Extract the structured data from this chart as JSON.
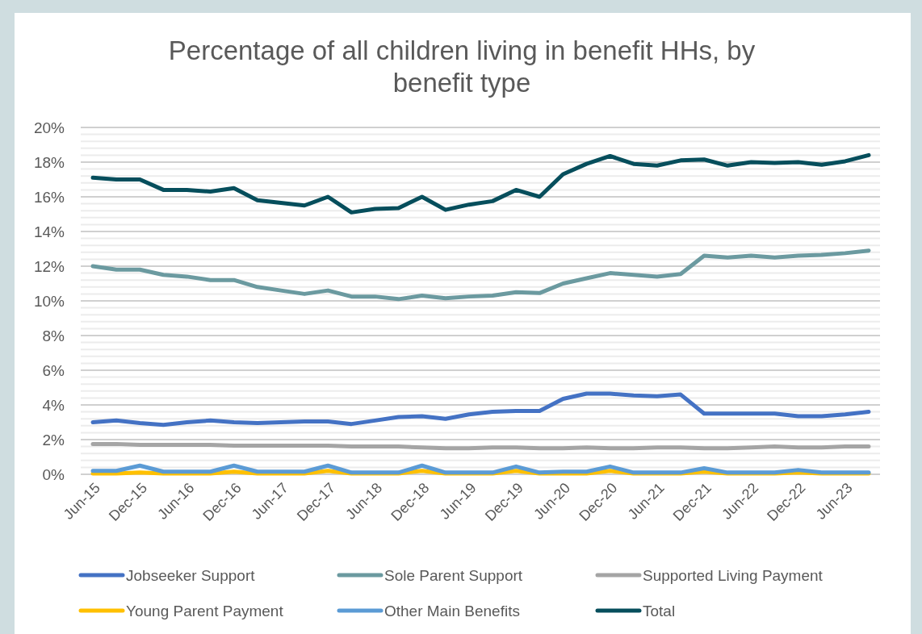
{
  "chart_data": {
    "type": "line",
    "title": "Percentage of all children living  in benefit HHs, by benefit type",
    "categories": [
      "Jun-15",
      null,
      "Dec-15",
      null,
      "Jun-16",
      null,
      "Dec-16",
      null,
      "Jun-17",
      null,
      "Dec-17",
      null,
      "Jun-18",
      null,
      "Dec-18",
      null,
      "Jun-19",
      null,
      "Dec-19",
      null,
      "Jun-20",
      null,
      "Dec-20",
      null,
      "Jun-21",
      null,
      "Dec-21",
      null,
      "Jun-22",
      null,
      "Dec-22",
      null,
      "Jun-23",
      null
    ],
    "series": [
      {
        "name": "Jobseeker Support",
        "color": "#4472c4",
        "values": [
          3.0,
          3.1,
          2.95,
          2.85,
          3.0,
          3.1,
          3.0,
          2.95,
          3.0,
          3.05,
          3.05,
          2.9,
          3.1,
          3.3,
          3.35,
          3.2,
          3.45,
          3.6,
          3.65,
          3.65,
          4.35,
          4.65,
          4.65,
          4.55,
          4.5,
          4.6,
          3.5,
          3.5,
          3.5,
          3.5,
          3.35,
          3.35,
          3.45,
          3.6
        ]
      },
      {
        "name": "Sole Parent Support",
        "color": "#6b9aa0",
        "values": [
          12.0,
          11.8,
          11.8,
          11.5,
          11.4,
          11.2,
          11.2,
          10.8,
          10.6,
          10.4,
          10.6,
          10.25,
          10.25,
          10.1,
          10.3,
          10.15,
          10.25,
          10.3,
          10.5,
          10.45,
          11.0,
          11.3,
          11.6,
          11.5,
          11.4,
          11.55,
          12.6,
          12.5,
          12.6,
          12.5,
          12.6,
          12.65,
          12.75,
          12.9
        ]
      },
      {
        "name": "Supported Living Payment",
        "color": "#a5a5a5",
        "values": [
          1.75,
          1.75,
          1.7,
          1.7,
          1.7,
          1.7,
          1.65,
          1.65,
          1.65,
          1.65,
          1.65,
          1.6,
          1.6,
          1.6,
          1.55,
          1.5,
          1.5,
          1.55,
          1.55,
          1.5,
          1.5,
          1.55,
          1.5,
          1.5,
          1.55,
          1.55,
          1.5,
          1.5,
          1.55,
          1.6,
          1.55,
          1.55,
          1.6,
          1.6
        ]
      },
      {
        "name": "Young Parent Payment",
        "color": "#ffc000",
        "values": [
          0.05,
          0.05,
          0.1,
          0.05,
          0.05,
          0.05,
          0.15,
          0.05,
          0.05,
          0.05,
          0.2,
          0.05,
          0.05,
          0.05,
          0.2,
          0.05,
          0.05,
          0.05,
          0.2,
          0.05,
          0.05,
          0.05,
          0.2,
          0.05,
          0.05,
          0.05,
          0.15,
          0.05,
          0.05,
          0.05,
          0.1,
          0.05,
          0.05,
          0.05
        ]
      },
      {
        "name": "Other Main Benefits",
        "color": "#5b9bd5",
        "values": [
          0.2,
          0.2,
          0.5,
          0.15,
          0.15,
          0.15,
          0.5,
          0.15,
          0.15,
          0.15,
          0.5,
          0.1,
          0.1,
          0.1,
          0.5,
          0.1,
          0.1,
          0.1,
          0.45,
          0.1,
          0.15,
          0.15,
          0.45,
          0.1,
          0.1,
          0.1,
          0.35,
          0.1,
          0.1,
          0.1,
          0.25,
          0.1,
          0.1,
          0.1
        ]
      },
      {
        "name": "Total",
        "color": "#064e5c",
        "values": [
          17.1,
          17.0,
          17.0,
          16.4,
          16.4,
          16.3,
          16.5,
          15.8,
          15.65,
          15.5,
          16.0,
          15.1,
          15.3,
          15.35,
          16.0,
          15.25,
          15.55,
          15.75,
          16.4,
          16.0,
          17.3,
          17.9,
          18.35,
          17.9,
          17.8,
          18.1,
          18.15,
          17.8,
          18.0,
          17.95,
          18.0,
          17.85,
          18.05,
          18.4
        ]
      }
    ],
    "ylim": [
      0,
      20
    ],
    "yticks": [
      {
        "value": 0,
        "label": "0%"
      },
      {
        "value": 0.4,
        "label": null
      },
      {
        "value": 0.8,
        "label": null
      },
      {
        "value": 1.2,
        "label": null
      },
      {
        "value": 1.6,
        "label": null
      },
      {
        "value": 2,
        "label": "2%"
      },
      {
        "value": 2.4,
        "label": null
      },
      {
        "value": 2.8,
        "label": null
      },
      {
        "value": 3.2,
        "label": null
      },
      {
        "value": 3.6,
        "label": null
      },
      {
        "value": 4,
        "label": "4%"
      },
      {
        "value": 4.4,
        "label": null
      },
      {
        "value": 4.8,
        "label": null
      },
      {
        "value": 5.2,
        "label": null
      },
      {
        "value": 5.6,
        "label": null
      },
      {
        "value": 6,
        "label": "6%"
      },
      {
        "value": 6.4,
        "label": null
      },
      {
        "value": 6.8,
        "label": null
      },
      {
        "value": 7.2,
        "label": null
      },
      {
        "value": 7.6,
        "label": null
      },
      {
        "value": 8,
        "label": "8%"
      },
      {
        "value": 8.4,
        "label": null
      },
      {
        "value": 8.8,
        "label": null
      },
      {
        "value": 9.2,
        "label": null
      },
      {
        "value": 9.6,
        "label": null
      },
      {
        "value": 10,
        "label": "10%"
      },
      {
        "value": 10.4,
        "label": null
      },
      {
        "value": 10.8,
        "label": null
      },
      {
        "value": 11.2,
        "label": null
      },
      {
        "value": 11.6,
        "label": null
      },
      {
        "value": 12,
        "label": "12%"
      },
      {
        "value": 12.4,
        "label": null
      },
      {
        "value": 12.8,
        "label": null
      },
      {
        "value": 13.2,
        "label": null
      },
      {
        "value": 13.6,
        "label": null
      },
      {
        "value": 14,
        "label": "14%"
      },
      {
        "value": 14.4,
        "label": null
      },
      {
        "value": 14.8,
        "label": null
      },
      {
        "value": 15.2,
        "label": null
      },
      {
        "value": 15.6,
        "label": null
      },
      {
        "value": 16,
        "label": "16%"
      },
      {
        "value": 16.4,
        "label": null
      },
      {
        "value": 16.8,
        "label": null
      },
      {
        "value": 17.2,
        "label": null
      },
      {
        "value": 17.6,
        "label": null
      },
      {
        "value": 18,
        "label": "18%"
      },
      {
        "value": 18.4,
        "label": null
      },
      {
        "value": 18.8,
        "label": null
      },
      {
        "value": 19.2,
        "label": null
      },
      {
        "value": 19.6,
        "label": null
      },
      {
        "value": 20,
        "label": "20%"
      }
    ],
    "grid": "y",
    "legend": "bottom",
    "line_style": "solid",
    "marker": "none"
  }
}
